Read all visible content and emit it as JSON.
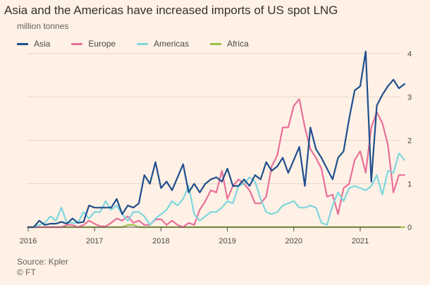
{
  "title": "Asia and the Americas have increased imports of US spot LNG",
  "subtitle": "million tonnes",
  "source": "Source: Kpler",
  "credit": "© FT",
  "colors": {
    "Asia": "#1f4e8c",
    "Europe": "#e8709a",
    "Americas": "#7ed6de",
    "Africa": "#9dc04a",
    "grid": "#e3d6c8",
    "axis": "#4d4845",
    "background": "#fff1e5"
  },
  "chart_data": {
    "type": "line",
    "x_start": "2016-01",
    "x_frequency": "monthly",
    "x_tick_labels": [
      "2016",
      "2017",
      "2018",
      "2019",
      "2020",
      "2021"
    ],
    "y_tick_labels": [
      "0",
      "1",
      "2",
      "3",
      "4"
    ],
    "ylim": [
      0,
      4
    ],
    "xlabel": "",
    "ylabel": "million tonnes",
    "grid": true,
    "legend_position": "top-left",
    "series": [
      {
        "name": "Asia",
        "values": [
          0,
          0,
          0.15,
          0.05,
          0.08,
          0.08,
          0.12,
          0.08,
          0.2,
          0.1,
          0.12,
          0.5,
          0.45,
          0.45,
          0.45,
          0.45,
          0.65,
          0.3,
          0.5,
          0.45,
          0.55,
          1.2,
          1.0,
          1.5,
          0.9,
          1.05,
          0.85,
          1.15,
          1.45,
          0.8,
          1.0,
          0.8,
          1.0,
          1.1,
          1.15,
          1.05,
          1.35,
          0.95,
          0.95,
          1.1,
          0.95,
          1.2,
          1.1,
          1.5,
          1.3,
          1.4,
          1.6,
          1.25,
          1.55,
          1.85,
          0.95,
          2.3,
          1.8,
          1.6,
          1.35,
          1.1,
          1.6,
          1.75,
          2.5,
          3.15,
          3.25,
          4.05,
          1.05,
          2.8,
          3.05,
          3.25,
          3.4,
          3.2,
          3.3
        ],
        "values_precision": "approx"
      },
      {
        "name": "Europe",
        "values": [
          0,
          0,
          0,
          0,
          0,
          0,
          0,
          0.05,
          0.05,
          0,
          0.05,
          0.15,
          0.08,
          0.02,
          0.02,
          0.1,
          0.2,
          0.15,
          0.25,
          0.1,
          0.15,
          0.05,
          0.05,
          0.18,
          0.18,
          0.05,
          0.15,
          0.05,
          0,
          0.1,
          0.05,
          0.4,
          0.6,
          0.85,
          0.8,
          1.3,
          0.65,
          0.95,
          1.1,
          1.0,
          0.85,
          0.55,
          0.55,
          0.7,
          1.4,
          1.65,
          2.3,
          2.3,
          2.8,
          2.95,
          2.3,
          1.8,
          1.6,
          1.35,
          0.7,
          0.75,
          0.3,
          0.9,
          1.0,
          1.55,
          1.75,
          1.25,
          2.3,
          2.65,
          2.4,
          1.9,
          0.8,
          1.2,
          1.2
        ],
        "values_precision": "approx"
      },
      {
        "name": "Americas",
        "values": [
          0,
          0,
          0.05,
          0.1,
          0.25,
          0.15,
          0.45,
          0.1,
          0.1,
          0.1,
          0.35,
          0.2,
          0.35,
          0.35,
          0.6,
          0.4,
          0.5,
          0.3,
          0.15,
          0.35,
          0.35,
          0.25,
          0.05,
          0.2,
          0.3,
          0.4,
          0.6,
          0.5,
          0.65,
          0.95,
          0.3,
          0.15,
          0.25,
          0.35,
          0.35,
          0.45,
          0.6,
          0.55,
          0.95,
          1.0,
          1.15,
          1.05,
          0.65,
          0.35,
          0.3,
          0.35,
          0.5,
          0.55,
          0.6,
          0.45,
          0.45,
          0.5,
          0.45,
          0.1,
          0.05,
          0.5,
          0.8,
          0.6,
          0.9,
          0.95,
          0.9,
          0.85,
          0.95,
          1.2,
          0.75,
          1.3,
          1.25,
          1.7,
          1.55
        ],
        "values_precision": "approx"
      },
      {
        "name": "Africa",
        "values": [
          0,
          0,
          0,
          0,
          0,
          0,
          0,
          0,
          0,
          0,
          0,
          0,
          0,
          0,
          0,
          0,
          0,
          0,
          0.05,
          0.05,
          0,
          0,
          0,
          0,
          0,
          0,
          0,
          0,
          0,
          0,
          0,
          0,
          0,
          0,
          0,
          0,
          0,
          0,
          0,
          0,
          0,
          0,
          0,
          0,
          0,
          0,
          0,
          0,
          0,
          0,
          0,
          0,
          0,
          0,
          0,
          0,
          0,
          0,
          0,
          0,
          0,
          0,
          0,
          0,
          0,
          0,
          0,
          0,
          0
        ],
        "values_precision": "approx"
      }
    ]
  }
}
